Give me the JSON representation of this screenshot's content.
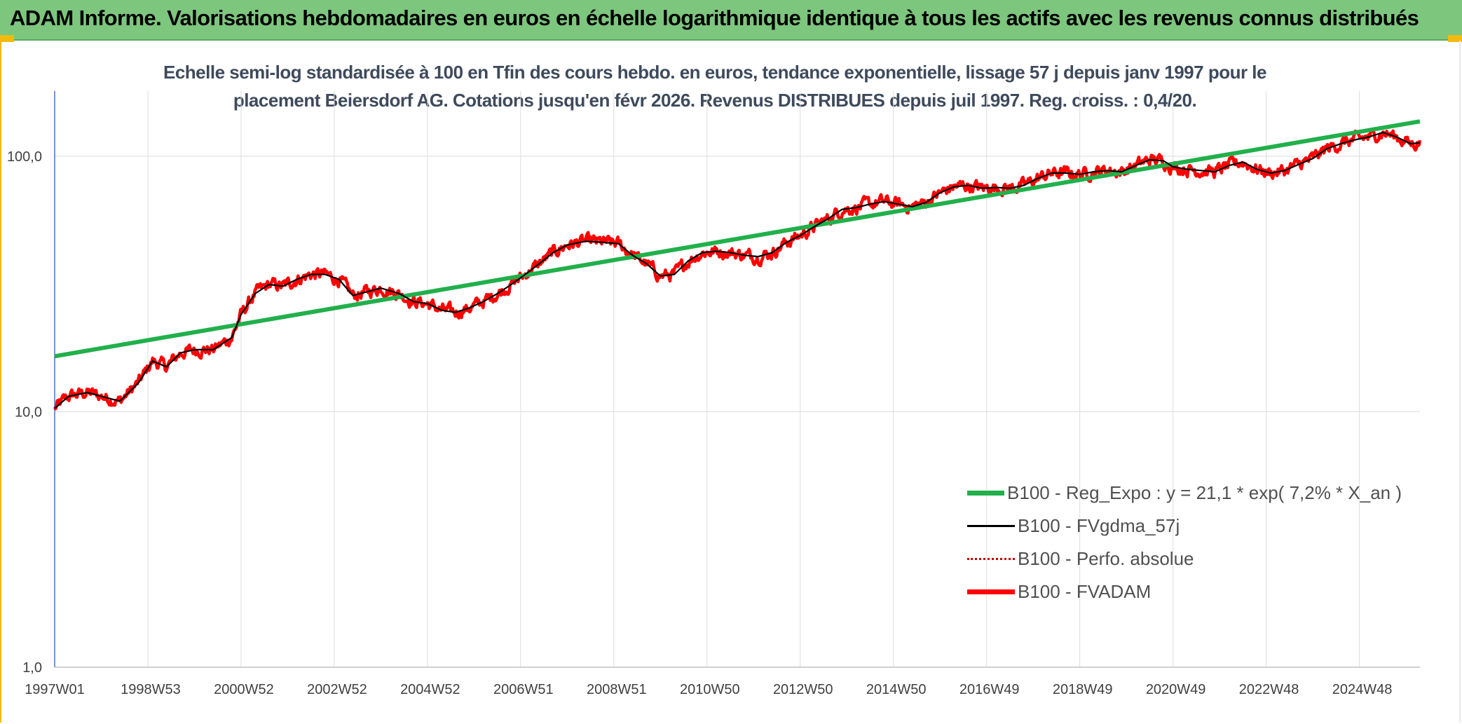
{
  "header": {
    "title": "ADAM Informe. Valorisations hebdomadaires en euros en échelle logarithmique identique à tous les actifs avec les revenus connus distribués"
  },
  "chart_data": {
    "type": "line",
    "title_line1": "Echelle semi-log standardisée à 100 en Tfin des cours hebdo. en euros, tendance exponentielle, lissage 57 j depuis janv 1997 pour le",
    "title_line2": "placement Beiersdorf AG. Cotations jusqu'en févr 2026. Revenus DISTRIBUES depuis juil 1997. Reg. croiss. : 0,4/20.",
    "y_scale": "log",
    "ylim": [
      1,
      180
    ],
    "xlim": [
      1997.0,
      2026.3
    ],
    "y_ticks": [
      {
        "value": 1,
        "label": "1,0"
      },
      {
        "value": 10,
        "label": "10,0"
      },
      {
        "value": 100,
        "label": "100,0"
      }
    ],
    "x_ticks": [
      {
        "value": 1997.0,
        "label": "1997W01"
      },
      {
        "value": 1999.0,
        "label": "1998W53"
      },
      {
        "value": 2001.0,
        "label": "2000W52"
      },
      {
        "value": 2003.0,
        "label": "2002W52"
      },
      {
        "value": 2005.0,
        "label": "2004W52"
      },
      {
        "value": 2007.0,
        "label": "2006W51"
      },
      {
        "value": 2009.0,
        "label": "2008W51"
      },
      {
        "value": 2011.0,
        "label": "2010W50"
      },
      {
        "value": 2013.0,
        "label": "2012W50"
      },
      {
        "value": 2015.0,
        "label": "2014W50"
      },
      {
        "value": 2017.0,
        "label": "2016W49"
      },
      {
        "value": 2019.0,
        "label": "2018W49"
      },
      {
        "value": 2021.0,
        "label": "2020W49"
      },
      {
        "value": 2023.0,
        "label": "2022W48"
      },
      {
        "value": 2025.0,
        "label": "2024W48"
      }
    ],
    "grid": true,
    "legend_position": "bottom-right",
    "series": [
      {
        "name": "B100 - Reg_Expo : y = 21,1 * exp( 7,2% *  X_an )",
        "color": "#21b04b",
        "style": "thick",
        "points": [
          [
            1997.0,
            16.5
          ],
          [
            2026.3,
            137
          ]
        ]
      },
      {
        "name": "B100 - FVgdma_57j",
        "color": "#000000",
        "style": "thin",
        "points": [
          [
            1997.0,
            10.3
          ],
          [
            1997.3,
            11.5
          ],
          [
            1997.7,
            11.9
          ],
          [
            1998.0,
            11.5
          ],
          [
            1998.4,
            11.0
          ],
          [
            1998.8,
            13.0
          ],
          [
            1999.1,
            15.8
          ],
          [
            1999.4,
            15.0
          ],
          [
            1999.7,
            17.0
          ],
          [
            2000.0,
            17.5
          ],
          [
            2000.4,
            17.5
          ],
          [
            2000.8,
            19.5
          ],
          [
            2001.0,
            24.0
          ],
          [
            2001.3,
            29.0
          ],
          [
            2001.6,
            31.5
          ],
          [
            2001.9,
            31.0
          ],
          [
            2002.2,
            33.0
          ],
          [
            2002.5,
            34.5
          ],
          [
            2002.8,
            34.5
          ],
          [
            2003.1,
            33.0
          ],
          [
            2003.4,
            28.5
          ],
          [
            2003.7,
            29.5
          ],
          [
            2004.0,
            30.5
          ],
          [
            2004.4,
            29.0
          ],
          [
            2004.7,
            27.0
          ],
          [
            2005.0,
            26.5
          ],
          [
            2005.3,
            25.0
          ],
          [
            2005.6,
            24.5
          ],
          [
            2005.9,
            25.5
          ],
          [
            2006.2,
            27.0
          ],
          [
            2006.5,
            29.0
          ],
          [
            2006.8,
            31.5
          ],
          [
            2007.1,
            34.5
          ],
          [
            2007.4,
            38.0
          ],
          [
            2007.7,
            42.0
          ],
          [
            2008.0,
            45.0
          ],
          [
            2008.4,
            46.5
          ],
          [
            2008.8,
            46.0
          ],
          [
            2009.1,
            45.5
          ],
          [
            2009.4,
            41.0
          ],
          [
            2009.7,
            38.0
          ],
          [
            2010.0,
            34.0
          ],
          [
            2010.3,
            34.5
          ],
          [
            2010.6,
            39.0
          ],
          [
            2010.9,
            42.0
          ],
          [
            2011.2,
            42.5
          ],
          [
            2011.5,
            42.0
          ],
          [
            2011.8,
            41.0
          ],
          [
            2012.1,
            40.5
          ],
          [
            2012.4,
            42.0
          ],
          [
            2012.7,
            46.0
          ],
          [
            2013.0,
            49.0
          ],
          [
            2013.3,
            53.0
          ],
          [
            2013.6,
            57.0
          ],
          [
            2013.9,
            62.0
          ],
          [
            2014.2,
            63.0
          ],
          [
            2014.5,
            65.0
          ],
          [
            2014.8,
            66.5
          ],
          [
            2015.1,
            65.0
          ],
          [
            2015.4,
            63.5
          ],
          [
            2015.7,
            66.0
          ],
          [
            2016.0,
            72.0
          ],
          [
            2016.3,
            76.0
          ],
          [
            2016.6,
            77.0
          ],
          [
            2016.9,
            75.0
          ],
          [
            2017.2,
            75.5
          ],
          [
            2017.5,
            75.0
          ],
          [
            2017.8,
            77.0
          ],
          [
            2018.1,
            82.0
          ],
          [
            2018.4,
            86.0
          ],
          [
            2018.7,
            86.0
          ],
          [
            2019.0,
            85.0
          ],
          [
            2019.3,
            87.0
          ],
          [
            2019.6,
            88.0
          ],
          [
            2019.9,
            87.0
          ],
          [
            2020.2,
            92.0
          ],
          [
            2020.5,
            97.0
          ],
          [
            2020.8,
            96.0
          ],
          [
            2021.0,
            91.0
          ],
          [
            2021.3,
            89.0
          ],
          [
            2021.6,
            88.0
          ],
          [
            2021.9,
            87.0
          ],
          [
            2022.2,
            92.0
          ],
          [
            2022.5,
            95.0
          ],
          [
            2022.8,
            89.0
          ],
          [
            2023.1,
            86.0
          ],
          [
            2023.4,
            88.0
          ],
          [
            2023.7,
            93.0
          ],
          [
            2024.0,
            98.0
          ],
          [
            2024.3,
            107.0
          ],
          [
            2024.6,
            112.0
          ],
          [
            2024.9,
            116.0
          ],
          [
            2025.2,
            119.0
          ],
          [
            2025.5,
            124.0
          ],
          [
            2025.8,
            119.0
          ],
          [
            2026.1,
            112.0
          ],
          [
            2026.3,
            113.0
          ]
        ]
      },
      {
        "name": "B100 - Perfo. absolue",
        "color": "#c00000",
        "style": "dotted",
        "points": []
      },
      {
        "name": "B100 - FVADAM",
        "color": "#ff0000",
        "style": "thick",
        "points": [
          [
            1997.0,
            10.3
          ],
          [
            1997.3,
            11.5
          ],
          [
            1997.7,
            11.9
          ],
          [
            1998.0,
            11.5
          ],
          [
            1998.4,
            11.0
          ],
          [
            1998.8,
            13.0
          ],
          [
            1999.1,
            15.8
          ],
          [
            1999.4,
            15.0
          ],
          [
            1999.7,
            17.0
          ],
          [
            2000.0,
            17.5
          ],
          [
            2000.4,
            17.5
          ],
          [
            2000.8,
            19.5
          ],
          [
            2001.0,
            24.0
          ],
          [
            2001.3,
            29.0
          ],
          [
            2001.6,
            31.5
          ],
          [
            2001.9,
            31.0
          ],
          [
            2002.2,
            33.0
          ],
          [
            2002.5,
            34.5
          ],
          [
            2002.8,
            34.5
          ],
          [
            2003.1,
            33.0
          ],
          [
            2003.4,
            28.5
          ],
          [
            2003.7,
            29.5
          ],
          [
            2004.0,
            30.5
          ],
          [
            2004.4,
            29.0
          ],
          [
            2004.7,
            27.0
          ],
          [
            2005.0,
            26.5
          ],
          [
            2005.3,
            25.0
          ],
          [
            2005.6,
            24.5
          ],
          [
            2005.9,
            25.5
          ],
          [
            2006.2,
            27.0
          ],
          [
            2006.5,
            29.0
          ],
          [
            2006.8,
            31.5
          ],
          [
            2007.1,
            34.5
          ],
          [
            2007.4,
            38.0
          ],
          [
            2007.7,
            42.0
          ],
          [
            2008.0,
            45.0
          ],
          [
            2008.4,
            46.5
          ],
          [
            2008.8,
            46.0
          ],
          [
            2009.1,
            45.5
          ],
          [
            2009.4,
            41.0
          ],
          [
            2009.7,
            38.0
          ],
          [
            2010.0,
            34.0
          ],
          [
            2010.3,
            34.5
          ],
          [
            2010.6,
            39.0
          ],
          [
            2010.9,
            42.0
          ],
          [
            2011.2,
            42.5
          ],
          [
            2011.5,
            42.0
          ],
          [
            2011.8,
            41.0
          ],
          [
            2012.1,
            40.5
          ],
          [
            2012.4,
            42.0
          ],
          [
            2012.7,
            46.0
          ],
          [
            2013.0,
            49.0
          ],
          [
            2013.3,
            53.0
          ],
          [
            2013.6,
            57.0
          ],
          [
            2013.9,
            62.0
          ],
          [
            2014.2,
            63.0
          ],
          [
            2014.5,
            65.0
          ],
          [
            2014.8,
            66.5
          ],
          [
            2015.1,
            65.0
          ],
          [
            2015.4,
            63.5
          ],
          [
            2015.7,
            66.0
          ],
          [
            2016.0,
            72.0
          ],
          [
            2016.3,
            76.0
          ],
          [
            2016.6,
            77.0
          ],
          [
            2016.9,
            75.0
          ],
          [
            2017.2,
            75.5
          ],
          [
            2017.5,
            75.0
          ],
          [
            2017.8,
            77.0
          ],
          [
            2018.1,
            82.0
          ],
          [
            2018.4,
            86.0
          ],
          [
            2018.7,
            86.0
          ],
          [
            2019.0,
            85.0
          ],
          [
            2019.3,
            87.0
          ],
          [
            2019.6,
            88.0
          ],
          [
            2019.9,
            87.0
          ],
          [
            2020.2,
            92.0
          ],
          [
            2020.5,
            97.0
          ],
          [
            2020.8,
            96.0
          ],
          [
            2021.0,
            91.0
          ],
          [
            2021.3,
            89.0
          ],
          [
            2021.6,
            88.0
          ],
          [
            2021.9,
            87.0
          ],
          [
            2022.2,
            92.0
          ],
          [
            2022.5,
            95.0
          ],
          [
            2022.8,
            89.0
          ],
          [
            2023.1,
            86.0
          ],
          [
            2023.4,
            88.0
          ],
          [
            2023.7,
            93.0
          ],
          [
            2024.0,
            98.0
          ],
          [
            2024.3,
            107.0
          ],
          [
            2024.6,
            112.0
          ],
          [
            2024.9,
            116.0
          ],
          [
            2025.2,
            119.0
          ],
          [
            2025.5,
            124.0
          ],
          [
            2025.8,
            119.0
          ],
          [
            2026.1,
            112.0
          ],
          [
            2026.3,
            113.0
          ]
        ]
      }
    ]
  }
}
